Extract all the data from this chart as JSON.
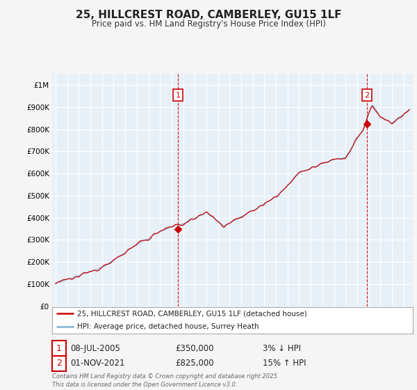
{
  "title": "25, HILLCREST ROAD, CAMBERLEY, GU15 1LF",
  "subtitle": "Price paid vs. HM Land Registry's House Price Index (HPI)",
  "legend_line1": "25, HILLCREST ROAD, CAMBERLEY, GU15 1LF (detached house)",
  "legend_line2": "HPI: Average price, detached house, Surrey Heath",
  "annotation1_date": "08-JUL-2005",
  "annotation1_price": "£350,000",
  "annotation1_pct": "3% ↓ HPI",
  "annotation1_year": 2005.54,
  "annotation1_value": 350000,
  "annotation2_date": "01-NOV-2021",
  "annotation2_price": "£825,000",
  "annotation2_pct": "15% ↑ HPI",
  "annotation2_year": 2021.83,
  "annotation2_value": 825000,
  "hpi_color": "#7fb3d3",
  "price_color": "#cc0000",
  "plot_bg_color": "#e8f0f7",
  "background_color": "#f5f5f5",
  "grid_color": "#ffffff",
  "ylim": [
    0,
    1050000
  ],
  "xlim_start": 1994.7,
  "xlim_end": 2025.8,
  "footnote": "Contains HM Land Registry data © Crown copyright and database right 2025.\nThis data is licensed under the Open Government Licence v3.0."
}
